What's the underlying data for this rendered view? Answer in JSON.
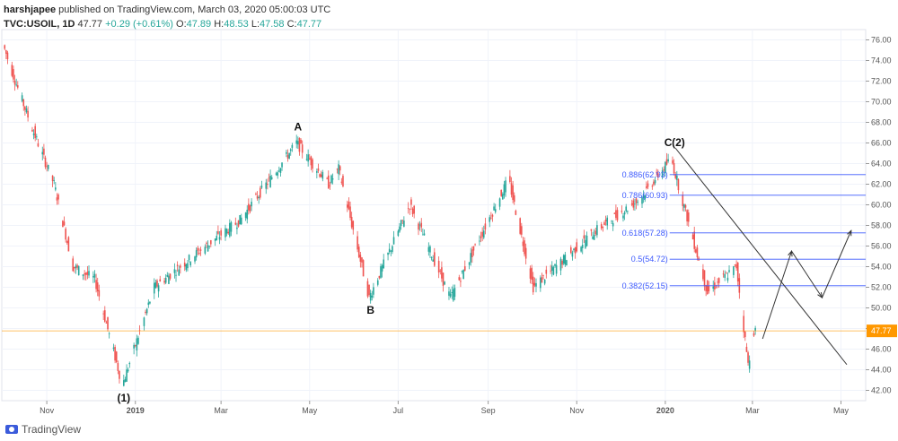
{
  "header": {
    "author": "harshjapee",
    "published": "published on TradingView.com, March 03, 2020 05:00:03 UTC",
    "symbol": "TVC:USOIL, 1D",
    "last": "47.77",
    "change": "+0.29 (+0.61%)",
    "o_label": "O:",
    "o_value": "47.89",
    "h_label": "H:",
    "h_value": "48.53",
    "l_label": "L:",
    "l_value": "47.58",
    "c_label": "C:",
    "c_value": "47.77"
  },
  "footer": {
    "brand": "TradingView"
  },
  "colors": {
    "up": "#26a69a",
    "down": "#ef5350",
    "fib": "#3d5afe",
    "price_line": "#ff9800",
    "grid": "#f0f3fa",
    "axis_text": "#555555",
    "price_tag_bg": "#ff9800"
  },
  "chart_data": {
    "type": "candlestick",
    "x_ticks": [
      "Nov",
      "2019",
      "Mar",
      "May",
      "Jul",
      "Sep",
      "Nov",
      "2020",
      "Mar",
      "May"
    ],
    "y_ticks": [
      "76.00",
      "74.00",
      "72.00",
      "70.00",
      "68.00",
      "66.00",
      "64.00",
      "62.00",
      "60.00",
      "58.00",
      "56.00",
      "54.00",
      "52.00",
      "50.00",
      "48.00",
      "46.00",
      "44.00",
      "42.00"
    ],
    "ylim": [
      41,
      77
    ],
    "current_price": "47.77",
    "close_path": [
      {
        "t": "2018-10-03",
        "v": 75.5
      },
      {
        "t": "2018-10-10",
        "v": 72.5
      },
      {
        "t": "2018-10-24",
        "v": 67.0
      },
      {
        "t": "2018-11-07",
        "v": 62.0
      },
      {
        "t": "2018-11-20",
        "v": 54.0
      },
      {
        "t": "2018-12-05",
        "v": 52.8
      },
      {
        "t": "2018-12-24",
        "v": 42.5
      },
      {
        "t": "2019-01-15",
        "v": 52.0
      },
      {
        "t": "2019-02-15",
        "v": 55.5
      },
      {
        "t": "2019-03-15",
        "v": 58.5
      },
      {
        "t": "2019-04-23",
        "v": 66.0
      },
      {
        "t": "2019-05-15",
        "v": 62.0
      },
      {
        "t": "2019-05-22",
        "v": 63.5
      },
      {
        "t": "2019-06-12",
        "v": 51.0
      },
      {
        "t": "2019-07-10",
        "v": 60.0
      },
      {
        "t": "2019-08-07",
        "v": 51.0
      },
      {
        "t": "2019-09-16",
        "v": 62.5
      },
      {
        "t": "2019-10-03",
        "v": 52.0
      },
      {
        "t": "2019-11-15",
        "v": 57.5
      },
      {
        "t": "2019-12-15",
        "v": 60.5
      },
      {
        "t": "2020-01-06",
        "v": 64.5
      },
      {
        "t": "2020-01-31",
        "v": 51.5
      },
      {
        "t": "2020-02-20",
        "v": 54.0
      },
      {
        "t": "2020-02-28",
        "v": 44.5
      },
      {
        "t": "2020-03-03",
        "v": 47.77
      }
    ],
    "fib_levels": [
      {
        "label": "0.886(62.93)",
        "value": 62.93
      },
      {
        "label": "0.786(60.93)",
        "value": 60.93
      },
      {
        "label": "0.618(57.28)",
        "value": 57.28
      },
      {
        "label": "0.5(54.72)",
        "value": 54.72
      },
      {
        "label": "0.382(52.15)",
        "value": 52.15
      }
    ],
    "wave_labels": [
      {
        "text": "(1)",
        "t": "2018-12-24",
        "v": 42.5,
        "pos": "below"
      },
      {
        "text": "A",
        "t": "2019-04-23",
        "v": 66.0,
        "pos": "above"
      },
      {
        "text": "B",
        "t": "2019-06-12",
        "v": 51.0,
        "pos": "below"
      },
      {
        "text": "C",
        "t": "2020-01-03",
        "v": 64.5,
        "pos": "above"
      },
      {
        "text": "(2)",
        "t": "2020-01-10",
        "v": 64.5,
        "pos": "above"
      }
    ],
    "trendline": [
      {
        "t": "2020-01-08",
        "v": 65.5
      },
      {
        "t": "2020-05-05",
        "v": 44.5
      }
    ],
    "projection": [
      {
        "t": "2020-03-08",
        "v": 47.0
      },
      {
        "t": "2020-03-28",
        "v": 55.5
      },
      {
        "t": "2020-04-18",
        "v": 51.0
      },
      {
        "t": "2020-05-08",
        "v": 57.5
      }
    ]
  }
}
